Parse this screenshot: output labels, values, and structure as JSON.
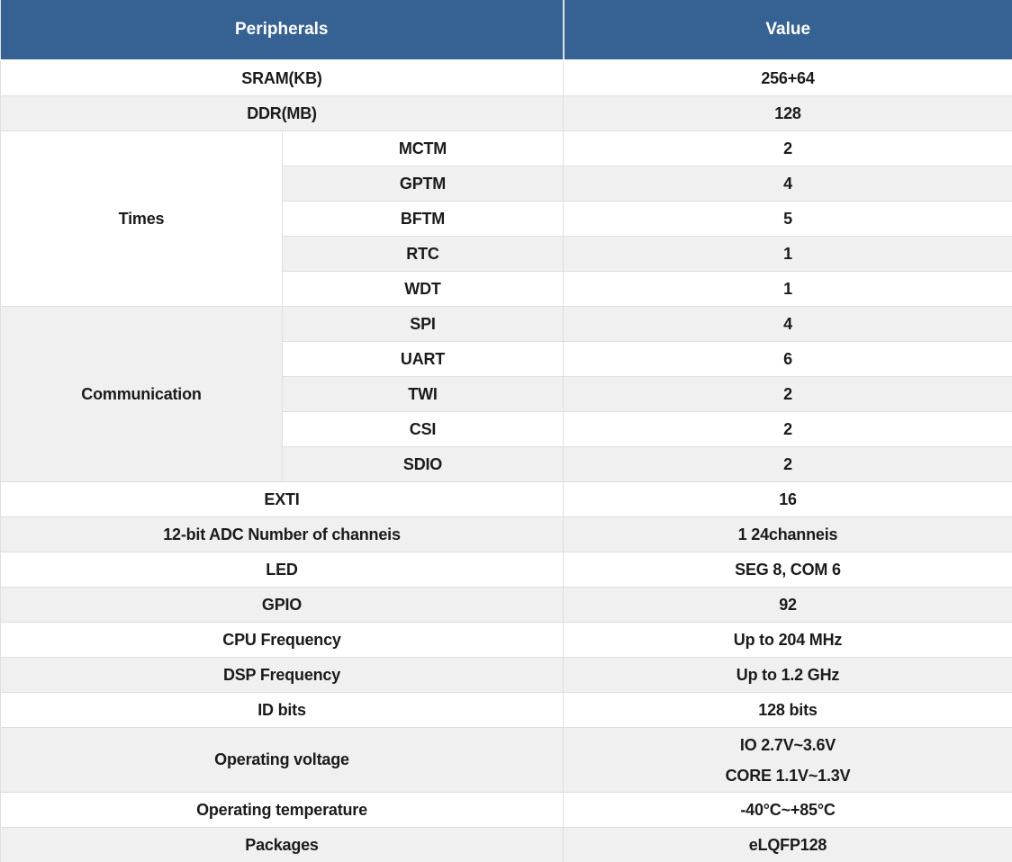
{
  "chart_data": {
    "type": "table",
    "title": "",
    "columns": [
      "Peripherals",
      "Value"
    ],
    "rows": [
      {
        "group": "",
        "peripheral": "SRAM(KB)",
        "value": "256+64"
      },
      {
        "group": "",
        "peripheral": "DDR(MB)",
        "value": "128"
      },
      {
        "group": "Times",
        "peripheral": "MCTM",
        "value": "2"
      },
      {
        "group": "Times",
        "peripheral": "GPTM",
        "value": "4"
      },
      {
        "group": "Times",
        "peripheral": "BFTM",
        "value": "5"
      },
      {
        "group": "Times",
        "peripheral": "RTC",
        "value": "1"
      },
      {
        "group": "Times",
        "peripheral": "WDT",
        "value": "1"
      },
      {
        "group": "Communication",
        "peripheral": "SPI",
        "value": "4"
      },
      {
        "group": "Communication",
        "peripheral": "UART",
        "value": "6"
      },
      {
        "group": "Communication",
        "peripheral": "TWI",
        "value": "2"
      },
      {
        "group": "Communication",
        "peripheral": "CSI",
        "value": "2"
      },
      {
        "group": "Communication",
        "peripheral": "SDIO",
        "value": "2"
      },
      {
        "group": "",
        "peripheral": "EXTI",
        "value": "16"
      },
      {
        "group": "",
        "peripheral": "12-bit ADC Number of channeis",
        "value": "1 24channeis"
      },
      {
        "group": "",
        "peripheral": "LED",
        "value": "SEG 8, COM 6"
      },
      {
        "group": "",
        "peripheral": "GPIO",
        "value": "92"
      },
      {
        "group": "",
        "peripheral": "CPU Frequency",
        "value": "Up to 204 MHz"
      },
      {
        "group": "",
        "peripheral": "DSP Frequency",
        "value": "Up to 1.2 GHz"
      },
      {
        "group": "",
        "peripheral": "ID bits",
        "value": "128 bits"
      },
      {
        "group": "",
        "peripheral": "Operating voltage",
        "value": "IO 2.7V~3.6V / CORE 1.1V~1.3V"
      },
      {
        "group": "",
        "peripheral": "Operating temperature",
        "value": "-40°C~+85°C"
      },
      {
        "group": "",
        "peripheral": "Packages",
        "value": "eLQFP128"
      }
    ],
    "layout": {
      "header_position": "top",
      "grid": true,
      "zebra_striping": true
    }
  },
  "table": {
    "header": {
      "peripherals": "Peripherals",
      "value": "Value"
    },
    "sram": {
      "label": "SRAM(KB)",
      "value": "256+64"
    },
    "ddr": {
      "label": "DDR(MB)",
      "value": "128"
    },
    "times": {
      "label": "Times"
    },
    "mctm": {
      "label": "MCTM",
      "value": "2"
    },
    "gptm": {
      "label": "GPTM",
      "value": "4"
    },
    "bftm": {
      "label": "BFTM",
      "value": "5"
    },
    "rtc": {
      "label": "RTC",
      "value": "1"
    },
    "wdt": {
      "label": "WDT",
      "value": "1"
    },
    "communication": {
      "label": "Communication"
    },
    "spi": {
      "label": "SPI",
      "value": "4"
    },
    "uart": {
      "label": "UART",
      "value": "6"
    },
    "twi": {
      "label": "TWI",
      "value": "2"
    },
    "csi": {
      "label": "CSI",
      "value": "2"
    },
    "sdio": {
      "label": "SDIO",
      "value": "2"
    },
    "exti": {
      "label": "EXTI",
      "value": "16"
    },
    "adc": {
      "label": "12-bit ADC Number of channeis",
      "value": "1 24channeis"
    },
    "led": {
      "label": "LED",
      "value": "SEG 8, COM 6"
    },
    "gpio": {
      "label": "GPIO",
      "value": "92"
    },
    "cpu": {
      "label": "CPU Frequency",
      "value": "Up to 204 MHz"
    },
    "dsp": {
      "label": "DSP Frequency",
      "value": "Up to 1.2 GHz"
    },
    "idbits": {
      "label": "ID bits",
      "value": "128 bits"
    },
    "voltage": {
      "label": "Operating voltage",
      "value_line1": "IO 2.7V~3.6V",
      "value_line2": "CORE 1.1V~1.3V"
    },
    "temperature": {
      "label": "Operating temperature",
      "value": "-40°C~+85°C"
    },
    "packages": {
      "label": "Packages",
      "value": "eLQFP128"
    }
  },
  "colors": {
    "header_bg": "#366293",
    "header_text": "#ffffff",
    "alt_row_bg": "#f0f0f0",
    "row_bg": "#ffffff",
    "border": "#dfdfdf",
    "body_text": "#1b1b1b"
  }
}
